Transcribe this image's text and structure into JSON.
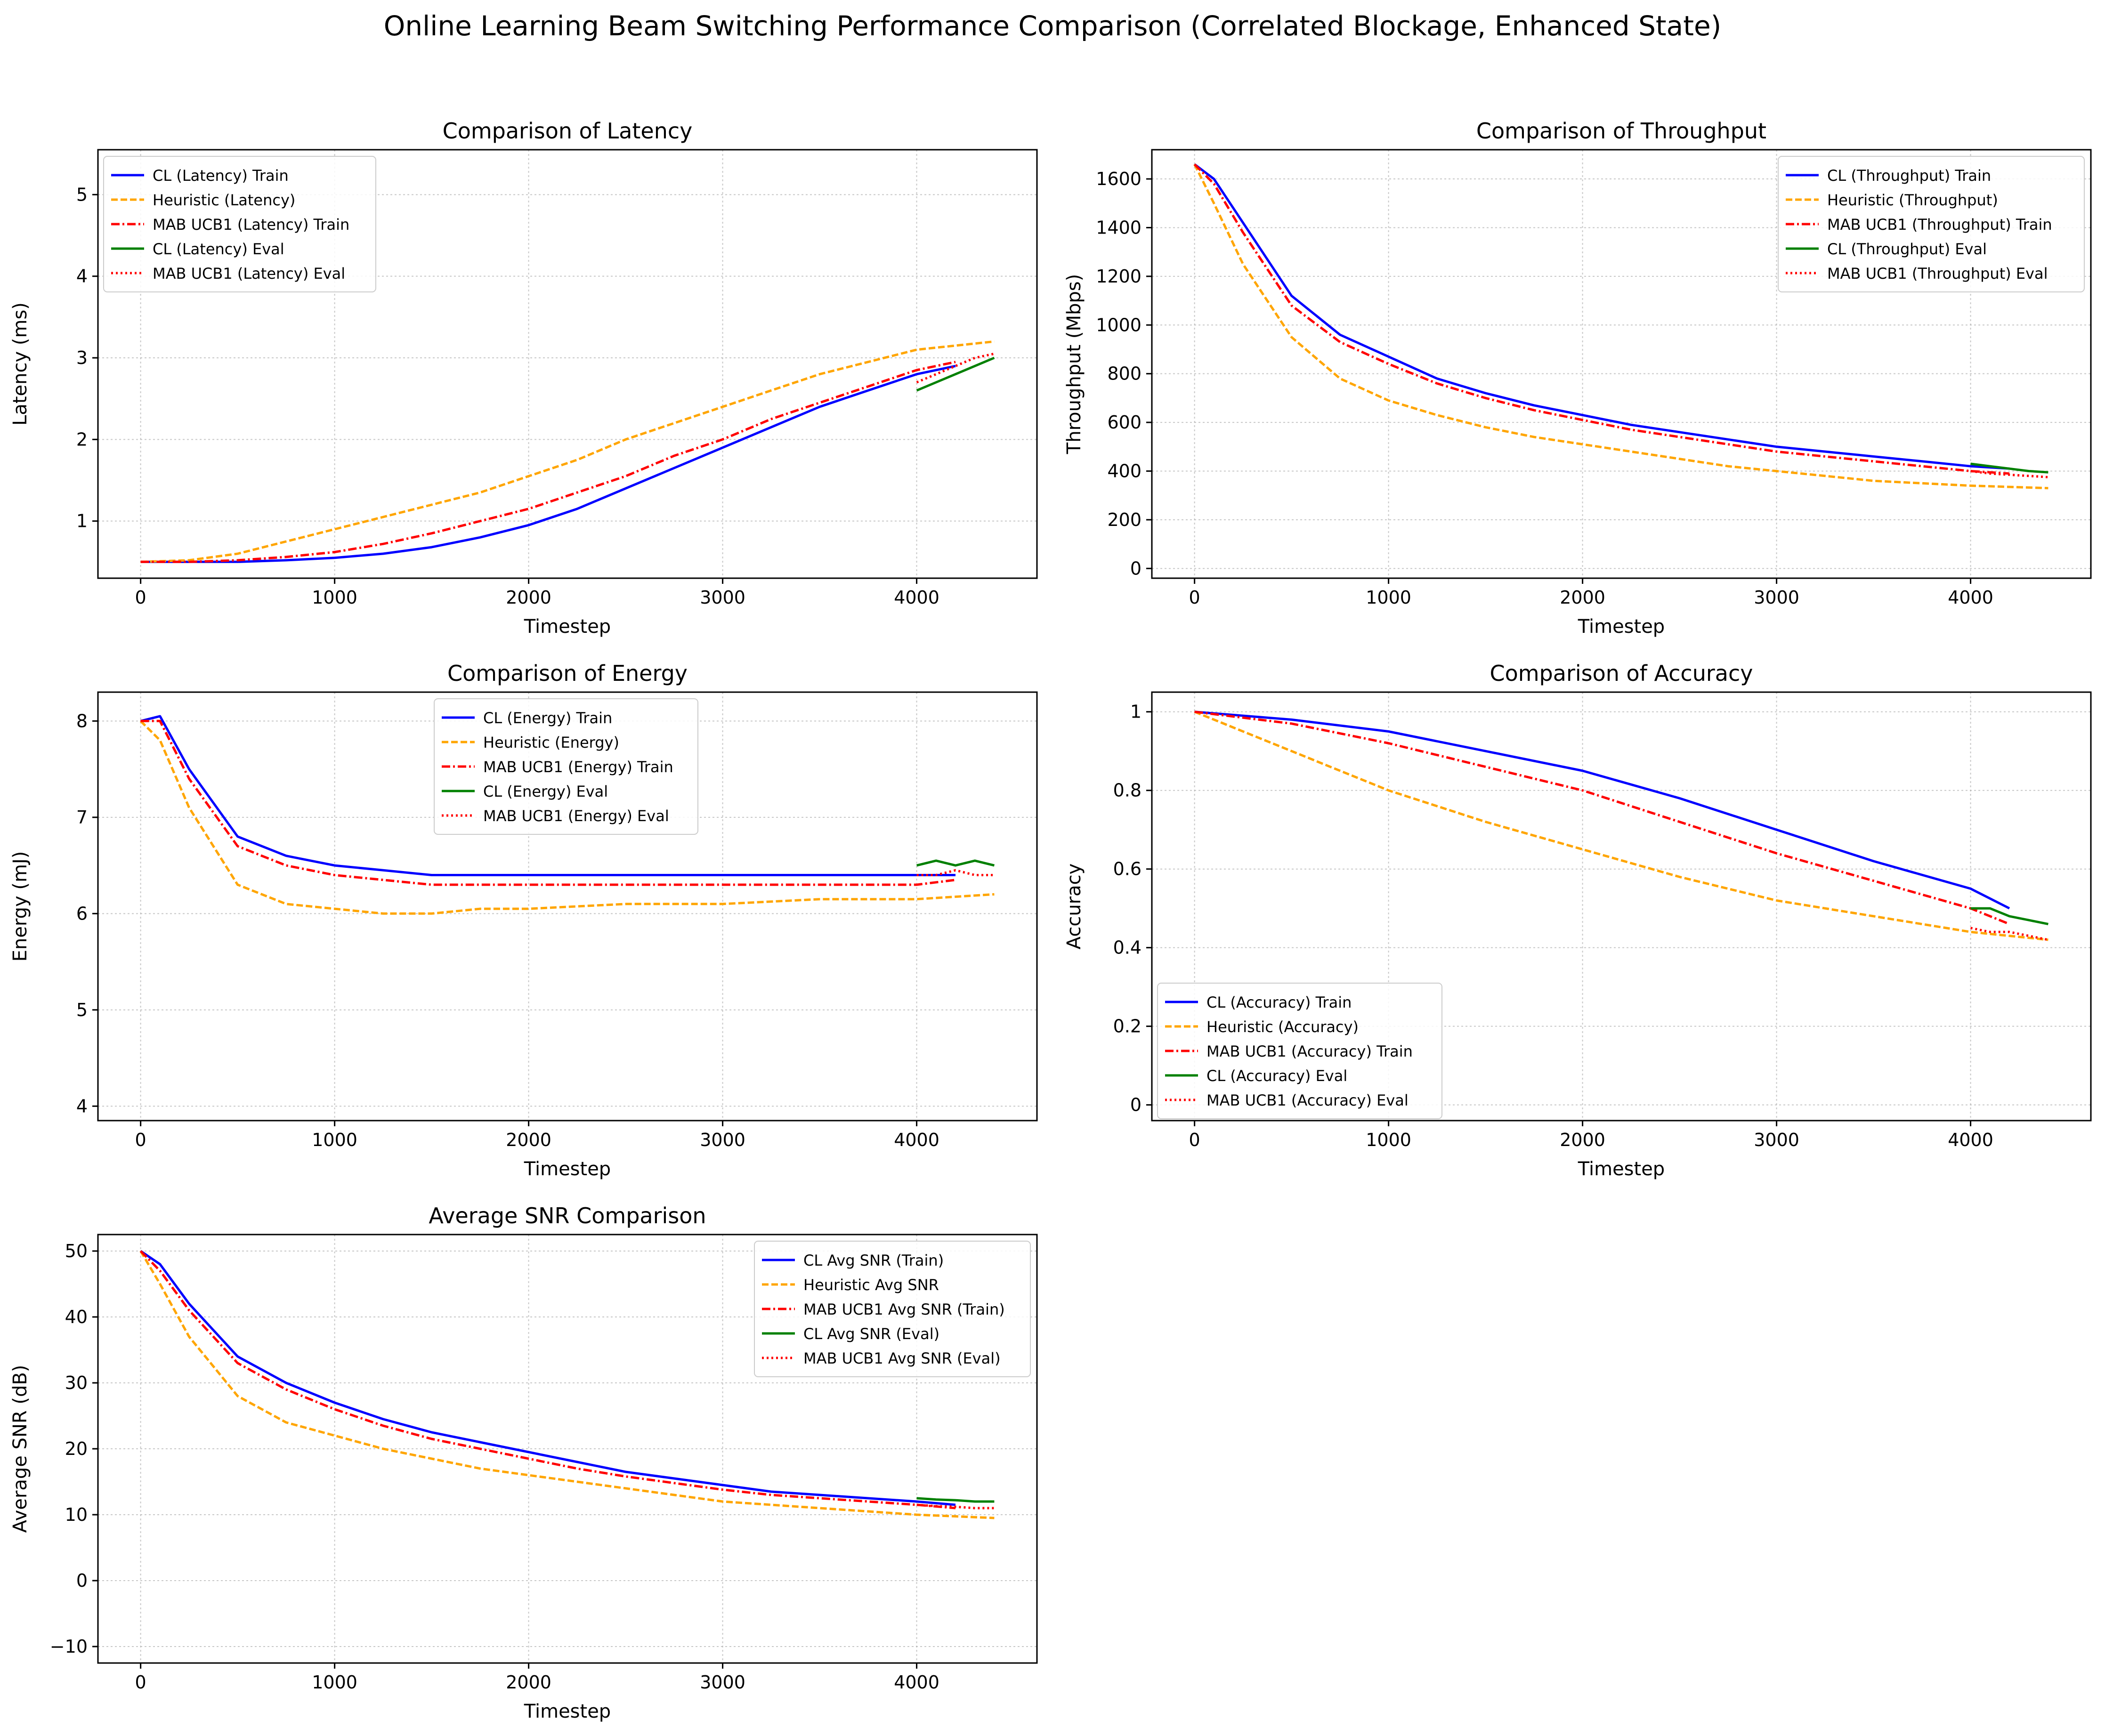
{
  "figure": {
    "title": "Online Learning Beam Switching Performance Comparison (Correlated Blockage, Enhanced State)"
  },
  "colors": {
    "cl_train": "#0000ff",
    "heuristic": "#ffa500",
    "mab_train": "#ff0000",
    "cl_eval": "#008000",
    "mab_eval": "#ff0000",
    "grid": "#b0b0b0"
  },
  "chart_data": [
    {
      "type": "line",
      "title": "Comparison of Latency",
      "xlabel": "Timestep",
      "ylabel": "Latency (ms)",
      "xlim": [
        -220,
        4620
      ],
      "ylim": [
        0.3,
        5.55
      ],
      "xticks": [
        0,
        1000,
        2000,
        3000,
        4000
      ],
      "yticks": [
        1,
        2,
        3,
        4,
        5
      ],
      "grid": true,
      "legend_position": "upper-left",
      "series": [
        {
          "name": "CL (Latency) Train",
          "style": "solid",
          "color": "#0000ff",
          "x": [
            0,
            250,
            500,
            750,
            1000,
            1250,
            1500,
            1750,
            2000,
            2250,
            2500,
            2750,
            3000,
            3250,
            3500,
            3750,
            4000,
            4200
          ],
          "y": [
            0.5,
            0.5,
            0.5,
            0.52,
            0.55,
            0.6,
            0.68,
            0.8,
            0.95,
            1.15,
            1.4,
            1.65,
            1.9,
            2.15,
            2.4,
            2.6,
            2.8,
            2.9
          ]
        },
        {
          "name": "Heuristic (Latency)",
          "style": "dashed",
          "color": "#ffa500",
          "x": [
            0,
            250,
            500,
            750,
            1000,
            1250,
            1500,
            1750,
            2000,
            2250,
            2500,
            2750,
            3000,
            3250,
            3500,
            3750,
            4000,
            4400
          ],
          "y": [
            0.5,
            0.52,
            0.6,
            0.75,
            0.9,
            1.05,
            1.2,
            1.35,
            1.55,
            1.75,
            2.0,
            2.2,
            2.4,
            2.6,
            2.8,
            2.95,
            3.1,
            3.2
          ]
        },
        {
          "name": "MAB UCB1 (Latency) Train",
          "style": "dashdot",
          "color": "#ff0000",
          "x": [
            0,
            250,
            500,
            750,
            1000,
            1250,
            1500,
            1750,
            2000,
            2250,
            2500,
            2750,
            3000,
            3250,
            3500,
            3750,
            4000,
            4200
          ],
          "y": [
            0.5,
            0.5,
            0.52,
            0.56,
            0.62,
            0.72,
            0.85,
            1.0,
            1.15,
            1.35,
            1.55,
            1.8,
            2.0,
            2.25,
            2.45,
            2.65,
            2.85,
            2.95
          ]
        },
        {
          "name": "CL (Latency) Eval",
          "style": "solid",
          "color": "#008000",
          "x": [
            4000,
            4100,
            4200,
            4300,
            4400
          ],
          "y": [
            2.6,
            2.7,
            2.8,
            2.9,
            3.0
          ]
        },
        {
          "name": "MAB UCB1 (Latency) Eval",
          "style": "dotted",
          "color": "#ff0000",
          "x": [
            4000,
            4100,
            4200,
            4300,
            4400
          ],
          "y": [
            2.7,
            2.8,
            2.9,
            3.0,
            3.05
          ]
        }
      ]
    },
    {
      "type": "line",
      "title": "Comparison of Throughput",
      "xlabel": "Timestep",
      "ylabel": "Throughput (Mbps)",
      "xlim": [
        -220,
        4620
      ],
      "ylim": [
        -40,
        1720
      ],
      "xticks": [
        0,
        1000,
        2000,
        3000,
        4000
      ],
      "yticks": [
        0,
        200,
        400,
        600,
        800,
        1000,
        1200,
        1400,
        1600
      ],
      "grid": true,
      "legend_position": "upper-right",
      "series": [
        {
          "name": "CL (Throughput) Train",
          "style": "solid",
          "color": "#0000ff",
          "x": [
            0,
            100,
            250,
            500,
            750,
            1000,
            1250,
            1500,
            1750,
            2000,
            2250,
            2500,
            2750,
            3000,
            3250,
            3500,
            3750,
            4000,
            4200
          ],
          "y": [
            1660,
            1600,
            1420,
            1120,
            960,
            870,
            780,
            720,
            670,
            630,
            590,
            560,
            530,
            500,
            480,
            460,
            440,
            420,
            410
          ]
        },
        {
          "name": "Heuristic (Throughput)",
          "style": "dashed",
          "color": "#ffa500",
          "x": [
            0,
            100,
            250,
            500,
            750,
            1000,
            1250,
            1500,
            1750,
            2000,
            2250,
            2500,
            2750,
            3000,
            3250,
            3500,
            3750,
            4000,
            4400
          ],
          "y": [
            1660,
            1500,
            1250,
            950,
            780,
            690,
            630,
            580,
            540,
            510,
            480,
            450,
            420,
            400,
            380,
            360,
            350,
            340,
            330
          ]
        },
        {
          "name": "MAB UCB1 (Throughput) Train",
          "style": "dashdot",
          "color": "#ff0000",
          "x": [
            0,
            100,
            250,
            500,
            750,
            1000,
            1250,
            1500,
            1750,
            2000,
            2250,
            2500,
            2750,
            3000,
            3250,
            3500,
            3750,
            4000,
            4200
          ],
          "y": [
            1660,
            1580,
            1380,
            1080,
            930,
            840,
            760,
            700,
            650,
            610,
            570,
            540,
            510,
            480,
            460,
            440,
            420,
            400,
            390
          ]
        },
        {
          "name": "CL (Throughput) Eval",
          "style": "solid",
          "color": "#008000",
          "x": [
            4000,
            4100,
            4200,
            4300,
            4400
          ],
          "y": [
            430,
            420,
            410,
            400,
            395
          ]
        },
        {
          "name": "MAB UCB1 (Throughput) Eval",
          "style": "dotted",
          "color": "#ff0000",
          "x": [
            4000,
            4100,
            4200,
            4300,
            4400
          ],
          "y": [
            400,
            390,
            385,
            380,
            375
          ]
        }
      ]
    },
    {
      "type": "line",
      "title": "Comparison of Energy",
      "xlabel": "Timestep",
      "ylabel": "Energy (mJ)",
      "xlim": [
        -220,
        4620
      ],
      "ylim": [
        3.85,
        8.3
      ],
      "xticks": [
        0,
        1000,
        2000,
        3000,
        4000
      ],
      "yticks": [
        4,
        5,
        6,
        7,
        8
      ],
      "grid": true,
      "legend_position": "upper-center",
      "series": [
        {
          "name": "CL (Energy) Train",
          "style": "solid",
          "color": "#0000ff",
          "x": [
            0,
            100,
            250,
            500,
            750,
            1000,
            1250,
            1500,
            1750,
            2000,
            2500,
            3000,
            3500,
            4000,
            4200
          ],
          "y": [
            8.0,
            8.05,
            7.5,
            6.8,
            6.6,
            6.5,
            6.45,
            6.4,
            6.4,
            6.4,
            6.4,
            6.4,
            6.4,
            6.4,
            6.4
          ]
        },
        {
          "name": "Heuristic (Energy)",
          "style": "dashed",
          "color": "#ffa500",
          "x": [
            0,
            100,
            250,
            500,
            750,
            1000,
            1250,
            1500,
            1750,
            2000,
            2500,
            3000,
            3500,
            4000,
            4400
          ],
          "y": [
            8.0,
            7.8,
            7.1,
            6.3,
            6.1,
            6.05,
            6.0,
            6.0,
            6.05,
            6.05,
            6.1,
            6.1,
            6.15,
            6.15,
            6.2
          ]
        },
        {
          "name": "MAB UCB1 (Energy) Train",
          "style": "dashdot",
          "color": "#ff0000",
          "x": [
            0,
            100,
            250,
            500,
            750,
            1000,
            1250,
            1500,
            1750,
            2000,
            2500,
            3000,
            3500,
            4000,
            4200
          ],
          "y": [
            8.0,
            8.0,
            7.4,
            6.7,
            6.5,
            6.4,
            6.35,
            6.3,
            6.3,
            6.3,
            6.3,
            6.3,
            6.3,
            6.3,
            6.35
          ]
        },
        {
          "name": "CL (Energy) Eval",
          "style": "solid",
          "color": "#008000",
          "x": [
            4000,
            4100,
            4200,
            4300,
            4400
          ],
          "y": [
            6.5,
            6.55,
            6.5,
            6.55,
            6.5
          ]
        },
        {
          "name": "MAB UCB1 (Energy) Eval",
          "style": "dotted",
          "color": "#ff0000",
          "x": [
            4000,
            4100,
            4200,
            4300,
            4400
          ],
          "y": [
            6.4,
            6.4,
            6.45,
            6.4,
            6.4
          ]
        }
      ]
    },
    {
      "type": "line",
      "title": "Comparison of Accuracy",
      "xlabel": "Timestep",
      "ylabel": "Accuracy",
      "xlim": [
        -220,
        4620
      ],
      "ylim": [
        -0.04,
        1.05
      ],
      "xticks": [
        0,
        1000,
        2000,
        3000,
        4000
      ],
      "yticks": [
        0.0,
        0.2,
        0.4,
        0.6,
        0.8,
        1.0
      ],
      "grid": true,
      "legend_position": "lower-left",
      "series": [
        {
          "name": "CL (Accuracy) Train",
          "style": "solid",
          "color": "#0000ff",
          "x": [
            0,
            500,
            1000,
            1500,
            2000,
            2500,
            3000,
            3500,
            4000,
            4200
          ],
          "y": [
            1.0,
            0.98,
            0.95,
            0.9,
            0.85,
            0.78,
            0.7,
            0.62,
            0.55,
            0.5
          ]
        },
        {
          "name": "Heuristic (Accuracy)",
          "style": "dashed",
          "color": "#ffa500",
          "x": [
            0,
            500,
            1000,
            1500,
            2000,
            2500,
            3000,
            3500,
            4000,
            4400
          ],
          "y": [
            1.0,
            0.9,
            0.8,
            0.72,
            0.65,
            0.58,
            0.52,
            0.48,
            0.44,
            0.42
          ]
        },
        {
          "name": "MAB UCB1 (Accuracy) Train",
          "style": "dashdot",
          "color": "#ff0000",
          "x": [
            0,
            500,
            1000,
            1500,
            2000,
            2500,
            3000,
            3500,
            4000,
            4200
          ],
          "y": [
            1.0,
            0.97,
            0.92,
            0.86,
            0.8,
            0.72,
            0.64,
            0.57,
            0.5,
            0.46
          ]
        },
        {
          "name": "CL (Accuracy) Eval",
          "style": "solid",
          "color": "#008000",
          "x": [
            4000,
            4100,
            4200,
            4300,
            4400
          ],
          "y": [
            0.5,
            0.5,
            0.48,
            0.47,
            0.46
          ]
        },
        {
          "name": "MAB UCB1 (Accuracy) Eval",
          "style": "dotted",
          "color": "#ff0000",
          "x": [
            4000,
            4100,
            4200,
            4300,
            4400
          ],
          "y": [
            0.45,
            0.44,
            0.44,
            0.43,
            0.42
          ]
        }
      ]
    },
    {
      "type": "line",
      "title": "Average SNR Comparison",
      "xlabel": "Timestep",
      "ylabel": "Average SNR (dB)",
      "xlim": [
        -220,
        4620
      ],
      "ylim": [
        -12.5,
        52.5
      ],
      "xticks": [
        0,
        1000,
        2000,
        3000,
        4000
      ],
      "yticks": [
        -10,
        0,
        10,
        20,
        30,
        40,
        50
      ],
      "grid": true,
      "legend_position": "upper-right",
      "series": [
        {
          "name": "CL Avg SNR (Train)",
          "style": "solid",
          "color": "#0000ff",
          "x": [
            0,
            100,
            250,
            500,
            750,
            1000,
            1250,
            1500,
            1750,
            2000,
            2250,
            2500,
            2750,
            3000,
            3250,
            3500,
            3750,
            4000,
            4200
          ],
          "y": [
            50,
            48,
            42,
            34,
            30,
            27,
            24.5,
            22.5,
            21,
            19.5,
            18,
            16.5,
            15.5,
            14.5,
            13.5,
            13,
            12.5,
            12,
            11.5
          ]
        },
        {
          "name": "Heuristic Avg SNR",
          "style": "dashed",
          "color": "#ffa500",
          "x": [
            0,
            100,
            250,
            500,
            750,
            1000,
            1250,
            1500,
            1750,
            2000,
            2250,
            2500,
            2750,
            3000,
            3250,
            3500,
            3750,
            4000,
            4400
          ],
          "y": [
            50,
            45,
            37,
            28,
            24,
            22,
            20,
            18.5,
            17,
            16,
            15,
            14,
            13,
            12,
            11.5,
            11,
            10.5,
            10,
            9.5
          ]
        },
        {
          "name": "MAB UCB1 Avg SNR (Train)",
          "style": "dashdot",
          "color": "#ff0000",
          "x": [
            0,
            100,
            250,
            500,
            750,
            1000,
            1250,
            1500,
            1750,
            2000,
            2250,
            2500,
            2750,
            3000,
            3250,
            3500,
            3750,
            4000,
            4200
          ],
          "y": [
            50,
            47,
            41,
            33,
            29,
            26,
            23.5,
            21.5,
            20,
            18.5,
            17,
            15.8,
            14.8,
            13.8,
            13,
            12.5,
            12,
            11.5,
            11
          ]
        },
        {
          "name": "CL Avg SNR (Eval)",
          "style": "solid",
          "color": "#008000",
          "x": [
            4000,
            4100,
            4200,
            4300,
            4400
          ],
          "y": [
            12.5,
            12.3,
            12.2,
            12,
            12
          ]
        },
        {
          "name": "MAB UCB1 Avg SNR (Eval)",
          "style": "dotted",
          "color": "#ff0000",
          "x": [
            4000,
            4100,
            4200,
            4300,
            4400
          ],
          "y": [
            11.5,
            11.3,
            11.2,
            11,
            11
          ]
        }
      ]
    }
  ]
}
